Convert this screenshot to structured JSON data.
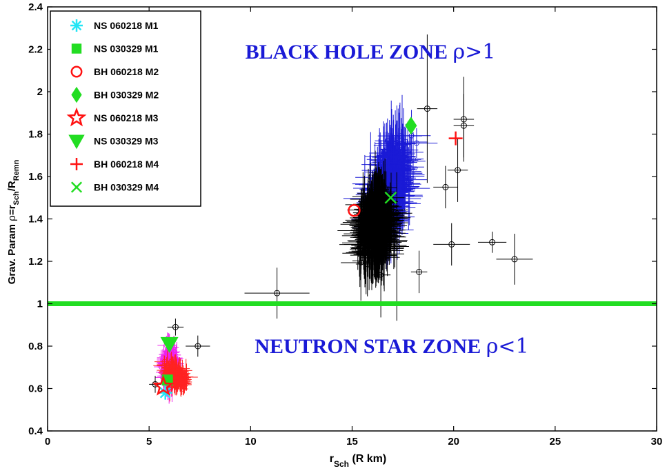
{
  "chart_data": {
    "type": "scatter",
    "title": "",
    "xlabel": {
      "main": "r",
      "sub": "Sch",
      "unit": " (R km)"
    },
    "ylabel": {
      "prefix": "Grav. Param ",
      "rho": "ρ",
      "eq": "=r",
      "sub1": "Sch",
      "slash": "/R",
      "sub2": "Remn"
    },
    "xlim": [
      0,
      30
    ],
    "ylim": [
      0.4,
      2.4
    ],
    "xticks": [
      "0",
      "5",
      "10",
      "15",
      "20",
      "25",
      "30"
    ],
    "yticks": [
      "0.4",
      "0.6",
      "0.8",
      "1",
      "1.2",
      "1.4",
      "1.6",
      "1.8",
      "2",
      "2.2",
      "2.4"
    ],
    "grid": false,
    "legend_position": "top-left",
    "annotations": [
      {
        "text_main": "BLACK HOLE ZONE ",
        "text_rho": "ρ>1",
        "x": 17.2,
        "y": 2.17
      },
      {
        "text_main": "NEUTRON STAR ZONE ",
        "text_rho": "ρ<1",
        "x": 18.2,
        "y": 0.8
      }
    ],
    "reference_line": {
      "y": 1.0,
      "color": "#22dd22"
    },
    "colors": {
      "bh_cloud_outer": "#1a1ad6",
      "bh_cloud_inner": "#000000",
      "ns_cloud_magenta": "#ee22ee",
      "ns_cloud_red": "#ff2222",
      "reference_line": "#22dd22",
      "cyan": "#22e5f5",
      "green": "#22dd22",
      "red": "#ff1111"
    },
    "series": [
      {
        "name": "NS 060218 M1",
        "marker": "asterisk",
        "color": "#22e5f5",
        "x": [
          5.8
        ],
        "y": [
          0.58
        ]
      },
      {
        "name": "NS 030329 M1",
        "marker": "square",
        "color": "#22dd22",
        "x": [
          5.9
        ],
        "y": [
          0.64
        ]
      },
      {
        "name": "BH 060218 M2",
        "marker": "circle",
        "color": "#ff1111",
        "x": [
          15.1
        ],
        "y": [
          1.44
        ]
      },
      {
        "name": "BH 030329 M2",
        "marker": "diamond",
        "color": "#22dd22",
        "x": [
          17.9
        ],
        "y": [
          1.84
        ]
      },
      {
        "name": "NS 060218 M3",
        "marker": "star",
        "color": "#ff1111",
        "x": [
          5.7
        ],
        "y": [
          0.61
        ]
      },
      {
        "name": "NS 030329 M3",
        "marker": "triangle-down",
        "color": "#22dd22",
        "x": [
          6.0
        ],
        "y": [
          0.81
        ]
      },
      {
        "name": "BH 060218 M4",
        "marker": "plus",
        "color": "#ff1111",
        "x": [
          20.1
        ],
        "y": [
          1.78
        ]
      },
      {
        "name": "BH 030329 M4",
        "marker": "x",
        "color": "#22dd22",
        "x": [
          16.9
        ],
        "y": [
          1.5
        ]
      }
    ],
    "outliers": [
      {
        "x": 11.3,
        "y": 1.05,
        "xerr": 1.6,
        "yerr": 0.12
      },
      {
        "x": 18.3,
        "y": 1.15,
        "xerr": 0.4,
        "yerr": 0.1
      },
      {
        "x": 19.9,
        "y": 1.28,
        "xerr": 0.9,
        "yerr": 0.1
      },
      {
        "x": 21.9,
        "y": 1.29,
        "xerr": 0.7,
        "yerr": 0.05
      },
      {
        "x": 23.0,
        "y": 1.21,
        "xerr": 0.9,
        "yerr": 0.12
      },
      {
        "x": 18.7,
        "y": 1.92,
        "xerr": 0.5,
        "yerr": 0.35
      },
      {
        "x": 20.5,
        "y": 1.87,
        "xerr": 0.5,
        "yerr": 0.2
      },
      {
        "x": 20.5,
        "y": 1.84,
        "xerr": 0.5,
        "yerr": 0.15
      },
      {
        "x": 20.2,
        "y": 1.63,
        "xerr": 0.5,
        "yerr": 0.15
      },
      {
        "x": 17.2,
        "y": 1.27,
        "xerr": 0.6,
        "yerr": 0.35
      },
      {
        "x": 19.6,
        "y": 1.55,
        "xerr": 0.6,
        "yerr": 0.1
      },
      {
        "x": 6.3,
        "y": 0.89,
        "xerr": 0.4,
        "yerr": 0.04
      },
      {
        "x": 7.4,
        "y": 0.8,
        "xerr": 0.6,
        "yerr": 0.05
      },
      {
        "x": 5.3,
        "y": 0.62,
        "xerr": 0.3,
        "yerr": 0.04
      }
    ]
  }
}
